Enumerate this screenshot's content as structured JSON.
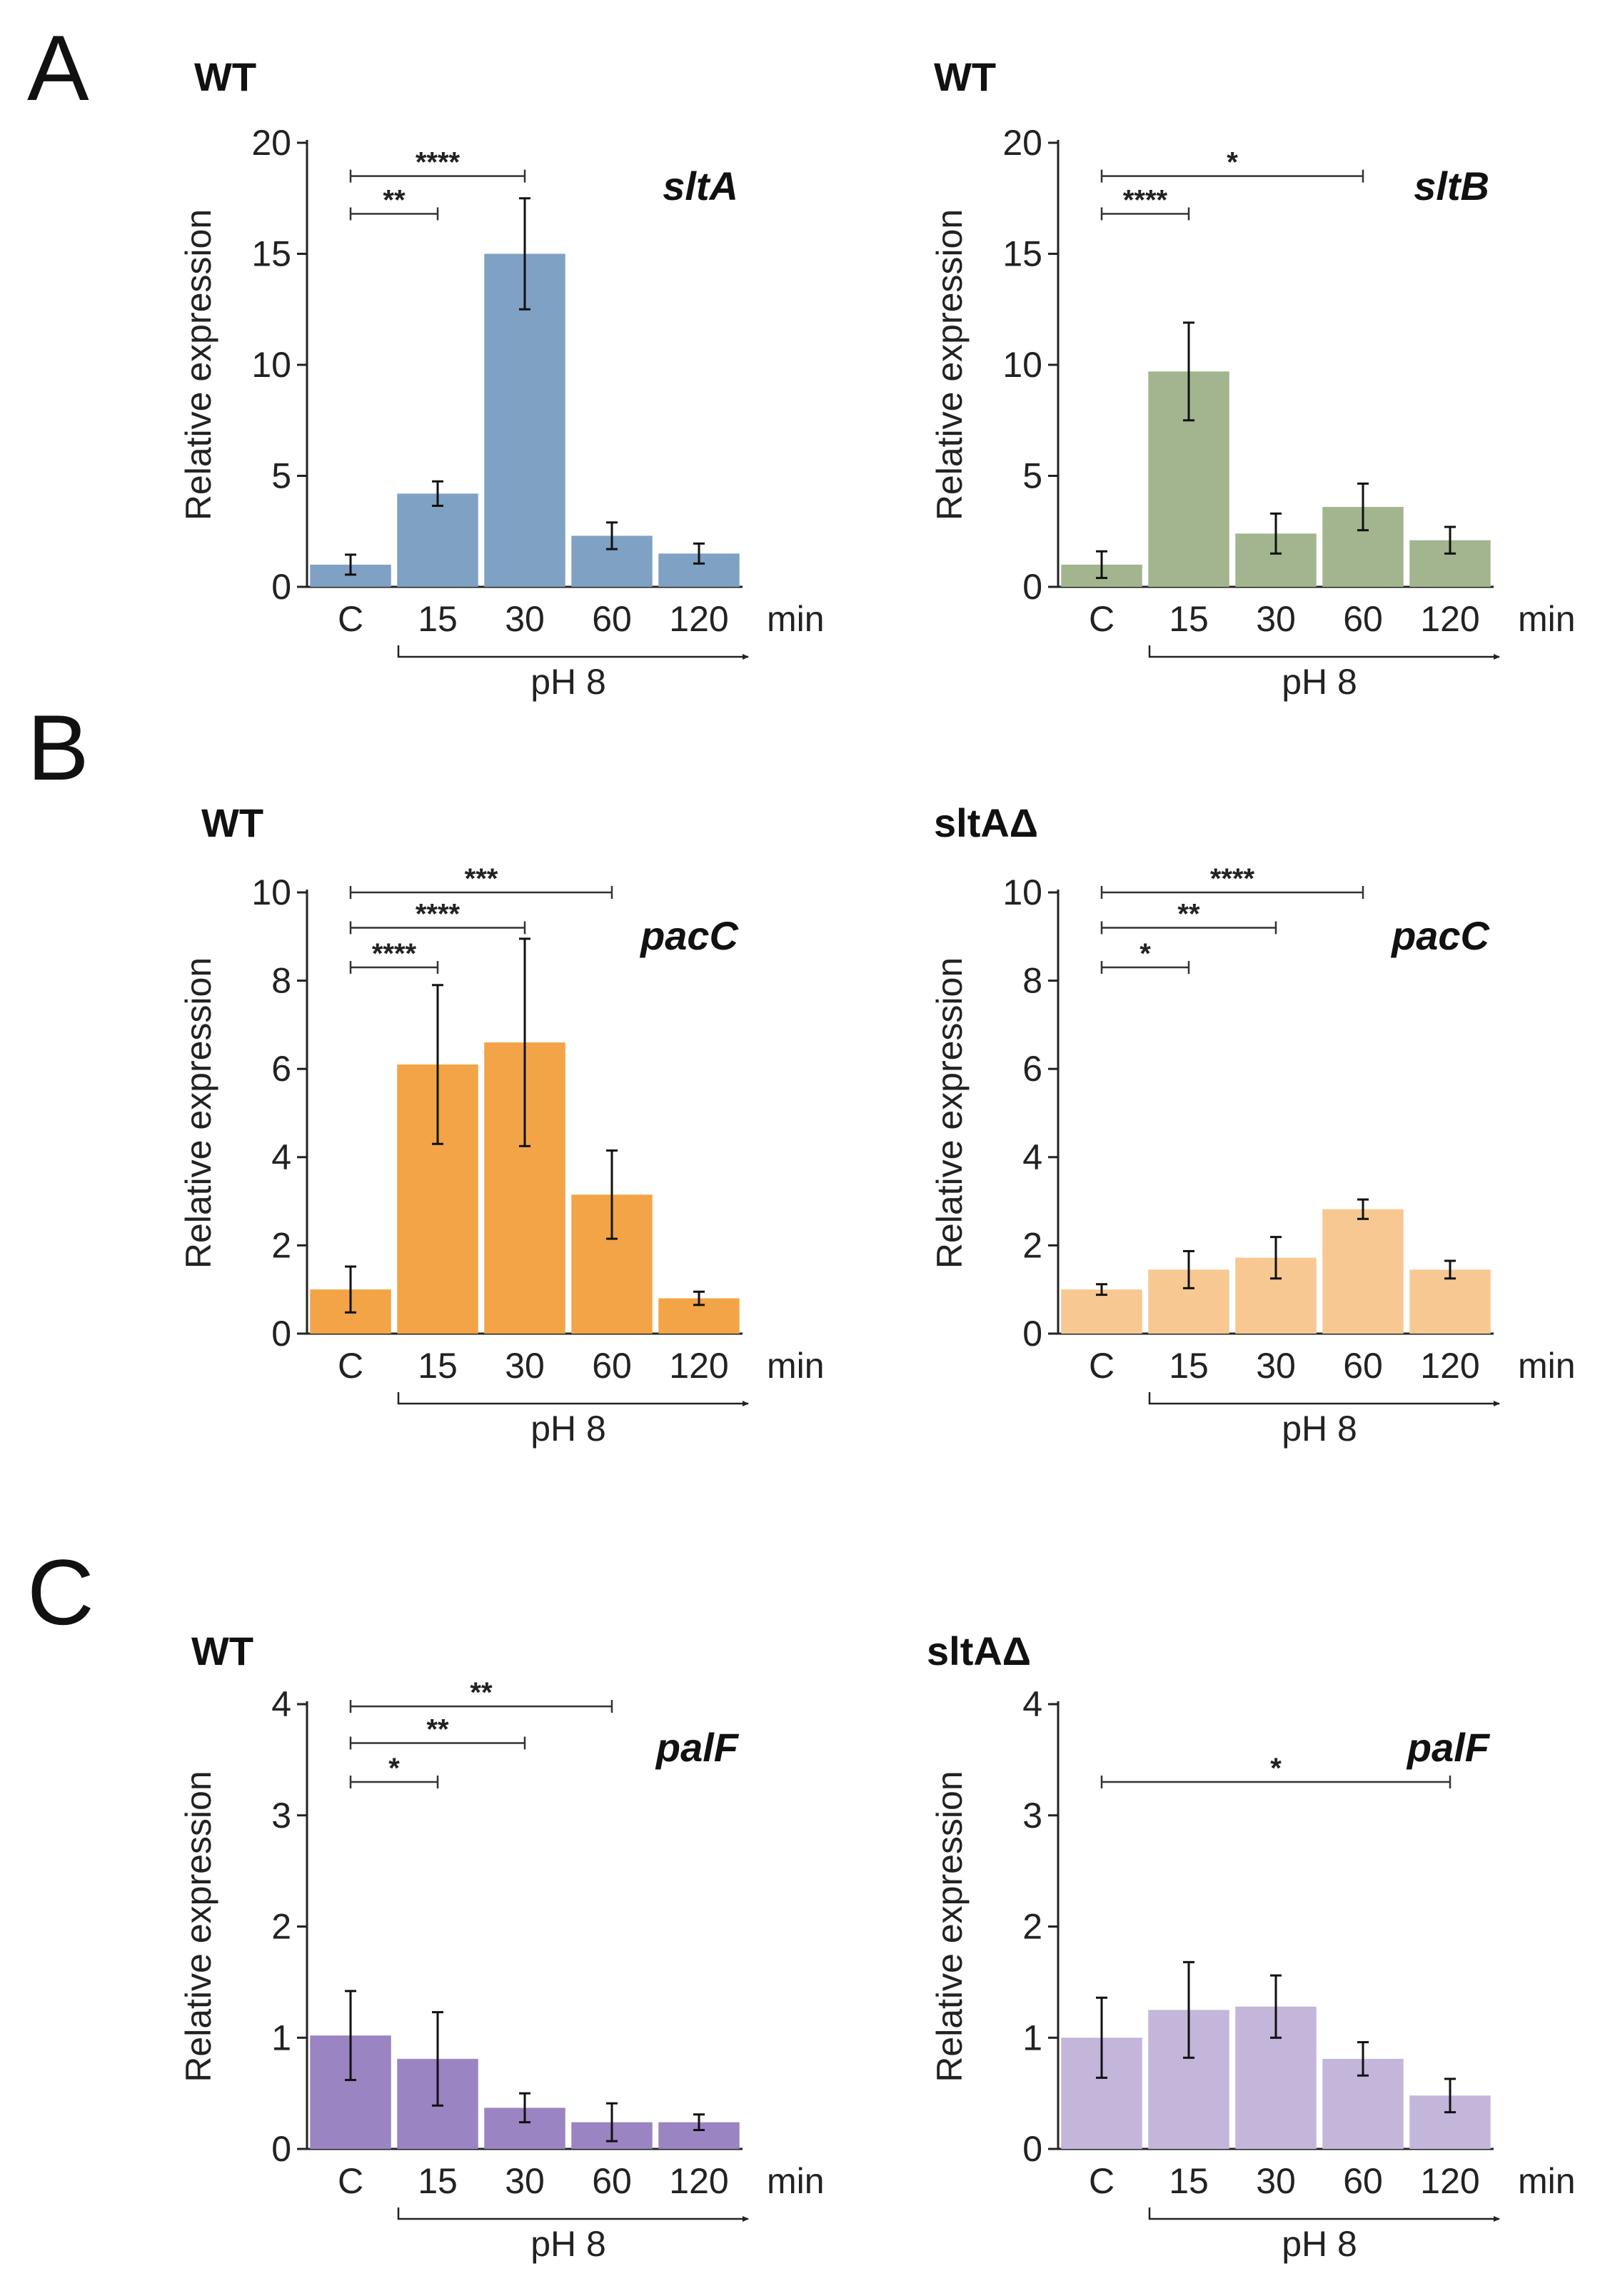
{
  "panel_letters": [
    "A",
    "B",
    "C"
  ],
  "chart_data": [
    {
      "panel": "A",
      "type": "bar",
      "strain": "WT",
      "gene": "sltA",
      "categories": [
        "C",
        "15",
        "30",
        "60",
        "120"
      ],
      "values": [
        1.0,
        4.2,
        15.0,
        2.3,
        1.5
      ],
      "errors": [
        0.45,
        0.55,
        2.5,
        0.6,
        0.45
      ],
      "ylim": [
        0,
        20
      ],
      "yticks": [
        0,
        5,
        10,
        15,
        20
      ],
      "ylabel": "Relative expression",
      "unit": "min",
      "treatment": "pH 8",
      "color": "#7fa1c3",
      "significance": [
        {
          "from": 0,
          "to": 1,
          "label": "**",
          "level": 16.8
        },
        {
          "from": 0,
          "to": 2,
          "label": "****",
          "level": 18.5
        }
      ]
    },
    {
      "panel": "A",
      "type": "bar",
      "strain": "WT",
      "gene": "sltB",
      "categories": [
        "C",
        "15",
        "30",
        "60",
        "120"
      ],
      "values": [
        1.0,
        9.7,
        2.4,
        3.6,
        2.1
      ],
      "errors": [
        0.6,
        2.2,
        0.9,
        1.05,
        0.6
      ],
      "ylim": [
        0,
        20
      ],
      "yticks": [
        0,
        5,
        10,
        15,
        20
      ],
      "ylabel": "Relative expression",
      "unit": "min",
      "treatment": "pH 8",
      "color": "#a2b58e",
      "significance": [
        {
          "from": 0,
          "to": 1,
          "label": "****",
          "level": 16.8
        },
        {
          "from": 0,
          "to": 3,
          "label": "*",
          "level": 18.5
        }
      ]
    },
    {
      "panel": "B",
      "type": "bar",
      "strain": "WT",
      "gene": "pacC",
      "categories": [
        "C",
        "15",
        "30",
        "60",
        "120"
      ],
      "values": [
        1.0,
        6.1,
        6.6,
        3.15,
        0.8
      ],
      "errors": [
        0.52,
        1.8,
        2.35,
        1.0,
        0.15
      ],
      "ylim": [
        0,
        10
      ],
      "yticks": [
        0,
        2,
        4,
        6,
        8,
        10
      ],
      "ylabel": "Relative expression",
      "unit": "min",
      "treatment": "pH 8",
      "color": "#f2a446",
      "significance": [
        {
          "from": 0,
          "to": 1,
          "label": "****",
          "level": 8.3
        },
        {
          "from": 0,
          "to": 2,
          "label": "****",
          "level": 9.2
        },
        {
          "from": 0,
          "to": 3,
          "label": "***",
          "level": 10.0
        }
      ]
    },
    {
      "panel": "B",
      "type": "bar",
      "strain": "sltAΔ",
      "gene": "pacC",
      "categories": [
        "C",
        "15",
        "30",
        "60",
        "120"
      ],
      "values": [
        1.0,
        1.45,
        1.72,
        2.82,
        1.45
      ],
      "errors": [
        0.12,
        0.42,
        0.47,
        0.22,
        0.2
      ],
      "ylim": [
        0,
        10
      ],
      "yticks": [
        0,
        2,
        4,
        6,
        8,
        10
      ],
      "ylabel": "Relative expression",
      "unit": "min",
      "treatment": "pH 8",
      "color": "#f7c891",
      "significance": [
        {
          "from": 0,
          "to": 1,
          "label": "*",
          "level": 8.3
        },
        {
          "from": 0,
          "to": 2,
          "label": "**",
          "level": 9.2
        },
        {
          "from": 0,
          "to": 3,
          "label": "****",
          "level": 10.0
        }
      ]
    },
    {
      "panel": "C",
      "type": "bar",
      "strain": "WT",
      "gene": "palF",
      "categories": [
        "C",
        "15",
        "30",
        "60",
        "120"
      ],
      "values": [
        1.02,
        0.81,
        0.37,
        0.24,
        0.24
      ],
      "errors": [
        0.4,
        0.42,
        0.13,
        0.17,
        0.07
      ],
      "ylim": [
        0,
        4
      ],
      "yticks": [
        0,
        1,
        2,
        3,
        4
      ],
      "ylabel": "Relative expression",
      "unit": "min",
      "treatment": "pH 8",
      "color": "#9a84c2",
      "significance": [
        {
          "from": 0,
          "to": 1,
          "label": "*",
          "level": 3.3
        },
        {
          "from": 0,
          "to": 2,
          "label": "**",
          "level": 3.65
        },
        {
          "from": 0,
          "to": 3,
          "label": "**",
          "level": 3.98
        }
      ]
    },
    {
      "panel": "C",
      "type": "bar",
      "strain": "sltAΔ",
      "gene": "palF",
      "categories": [
        "C",
        "15",
        "30",
        "60",
        "120"
      ],
      "values": [
        1.0,
        1.25,
        1.28,
        0.81,
        0.48
      ],
      "errors": [
        0.36,
        0.43,
        0.28,
        0.15,
        0.15
      ],
      "ylim": [
        0,
        4
      ],
      "yticks": [
        0,
        1,
        2,
        3,
        4
      ],
      "ylabel": "Relative expression",
      "unit": "min",
      "treatment": "pH 8",
      "color": "#c4b5db",
      "significance": [
        {
          "from": 0,
          "to": 4,
          "label": "*",
          "level": 3.3
        }
      ]
    }
  ]
}
